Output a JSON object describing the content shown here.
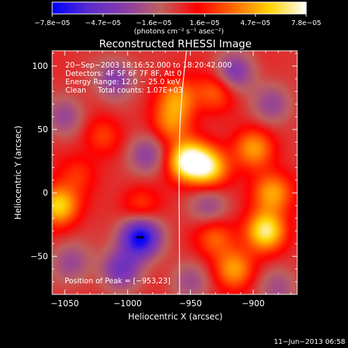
{
  "colorbar": {
    "ticks": [
      "−7.8e−05",
      "−4.7e−05",
      "−1.6e−05",
      "1.6e−05",
      "4.7e−05",
      "7.8e−05"
    ],
    "unit_label": "(photons cm⁻² s⁻¹ asec⁻²)",
    "range": [
      -7.8e-05,
      7.8e-05
    ],
    "stops": [
      "#0000ff",
      "#5b2bd0",
      "#8a3ca8",
      "#c0605e",
      "#ff0000",
      "#ff6a00",
      "#ffd400",
      "#ffffff"
    ]
  },
  "chart_data": {
    "type": "heatmap",
    "title": "Reconstructed RHESSI Image",
    "xlabel": "Heliocentric X (arcsec)",
    "ylabel": "Heliocentric Y (arcsec)",
    "xlim": [
      -1060,
      -865
    ],
    "ylim": [
      -80,
      112
    ],
    "xticks": [
      -1050,
      -1000,
      -950,
      -900
    ],
    "xtick_labels": [
      "−1050",
      "−1000",
      "−950",
      "−900"
    ],
    "yticks": [
      -50,
      0,
      50,
      100
    ],
    "ytick_labels": [
      "−50",
      "0",
      "50",
      "100"
    ],
    "annotations": [
      "20−Sep−2003 18:16:52.000 to 18:20:42.000",
      "Detectors: 4F 5F 6F 7F 8F, Att 0",
      "Energy Range: 12.0 − 25.0 keV",
      "Clean     Total counts: 1.07E+03"
    ],
    "peak_label": "Position of Peak = [−953,23]",
    "peak": [
      -953,
      23
    ],
    "sources": [
      {
        "x": -952,
        "y": 25,
        "v": 1.0
      },
      {
        "x": -935,
        "y": 20,
        "v": 0.75
      },
      {
        "x": -890,
        "y": -30,
        "v": 0.85
      },
      {
        "x": -885,
        "y": 0,
        "v": 0.6
      },
      {
        "x": -1055,
        "y": -10,
        "v": 0.75
      },
      {
        "x": -960,
        "y": 75,
        "v": 0.5
      },
      {
        "x": -965,
        "y": 55,
        "v": 0.45
      },
      {
        "x": -930,
        "y": 80,
        "v": 0.4
      },
      {
        "x": -900,
        "y": 35,
        "v": 0.55
      },
      {
        "x": -915,
        "y": -60,
        "v": 0.55
      },
      {
        "x": -1020,
        "y": 45,
        "v": 0.3
      },
      {
        "x": -1040,
        "y": 15,
        "v": 0.25
      },
      {
        "x": -930,
        "y": -35,
        "v": 0.4
      },
      {
        "x": -990,
        "y": -10,
        "v": 0.3
      },
      {
        "x": -990,
        "y": -35,
        "v": -1.0
      },
      {
        "x": -1005,
        "y": -60,
        "v": -0.55
      },
      {
        "x": -915,
        "y": 95,
        "v": -0.5
      },
      {
        "x": -1010,
        "y": 90,
        "v": -0.45
      },
      {
        "x": -1050,
        "y": 60,
        "v": -0.35
      },
      {
        "x": -985,
        "y": 30,
        "v": -0.4
      },
      {
        "x": -935,
        "y": -10,
        "v": -0.35
      },
      {
        "x": -885,
        "y": 70,
        "v": -0.35
      },
      {
        "x": -1045,
        "y": -55,
        "v": -0.35
      },
      {
        "x": -950,
        "y": -70,
        "v": -0.3
      },
      {
        "x": -880,
        "y": -75,
        "v": -0.3
      }
    ]
  },
  "footer": {
    "date": "11−Jun−2013 06:58"
  }
}
